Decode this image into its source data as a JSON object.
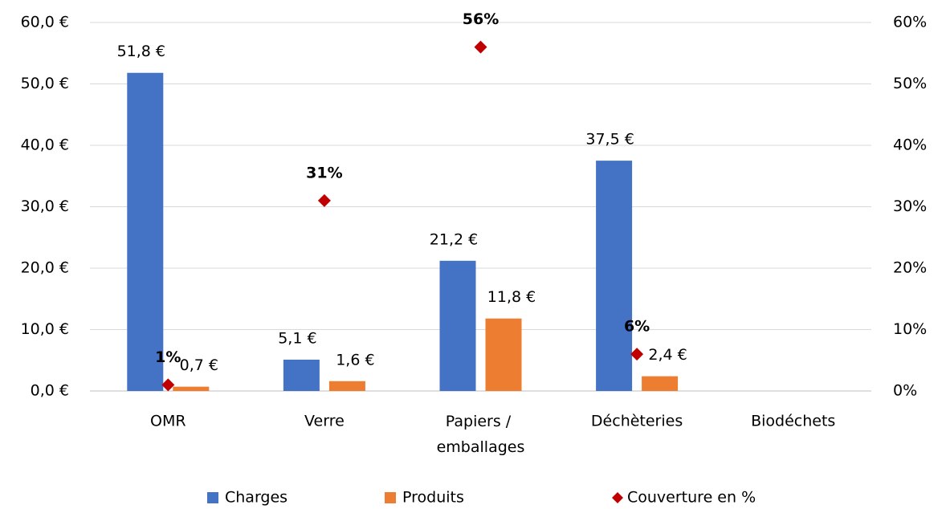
{
  "chart_data": {
    "type": "bar",
    "categories": [
      "OMR",
      "Verre",
      "Papiers / emballages",
      "Déchèteries",
      "Biodéchets"
    ],
    "series": [
      {
        "name": "Charges",
        "color": "#4472c4",
        "values": [
          51.8,
          5.1,
          21.2,
          37.5,
          null
        ],
        "value_labels": [
          "51,8 €",
          "5,1 €",
          "21,2 €",
          "37,5 €",
          null
        ]
      },
      {
        "name": "Produits",
        "color": "#ed7d31",
        "values": [
          0.7,
          1.6,
          11.8,
          2.4,
          null
        ],
        "value_labels": [
          "0,7 €",
          "1,6 €",
          "11,8 €",
          "2,4 €",
          null
        ]
      },
      {
        "name": "Couverture en %",
        "type": "scatter",
        "axis": "y2",
        "color": "#c00000",
        "values": [
          1,
          31,
          56,
          6,
          null
        ],
        "value_labels": [
          "1%",
          "31%",
          "56%",
          "6%",
          null
        ]
      }
    ],
    "ylim": [
      0,
      60
    ],
    "yticks": [
      {
        "value": 0,
        "label": "0,0 €"
      },
      {
        "value": 10,
        "label": "10,0 €"
      },
      {
        "value": 20,
        "label": "20,0 €"
      },
      {
        "value": 30,
        "label": "30,0 €"
      },
      {
        "value": 40,
        "label": "40,0 €"
      },
      {
        "value": 50,
        "label": "50,0 €"
      },
      {
        "value": 60,
        "label": "60,0 €"
      }
    ],
    "y2lim": [
      0,
      60
    ],
    "y2ticks": [
      {
        "value": 0,
        "label": "0%"
      },
      {
        "value": 10,
        "label": "10%"
      },
      {
        "value": 20,
        "label": "20%"
      },
      {
        "value": 30,
        "label": "30%"
      },
      {
        "value": 40,
        "label": "40%"
      },
      {
        "value": 50,
        "label": "50%"
      },
      {
        "value": 60,
        "label": "60%"
      }
    ],
    "grid": true,
    "legend": "bottom"
  }
}
